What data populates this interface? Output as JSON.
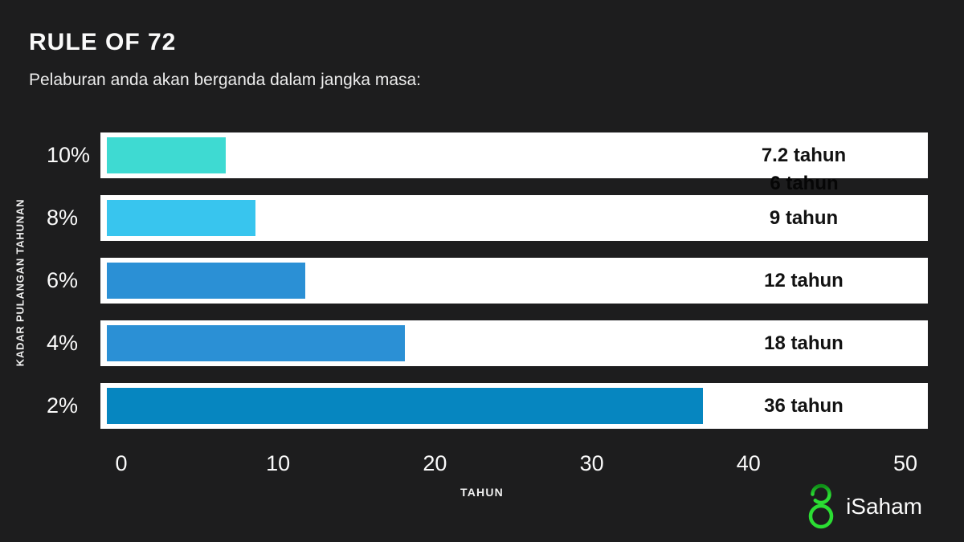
{
  "header": {
    "title": "RULE OF 72",
    "subtitle": "Pelaburan anda akan berganda dalam jangka masa:"
  },
  "chart_data": {
    "type": "bar",
    "orientation": "horizontal",
    "title": "RULE OF 72",
    "categories": [
      "10%",
      "8%",
      "6%",
      "4%",
      "2%"
    ],
    "values": [
      7.2,
      9,
      12,
      18,
      36
    ],
    "value_labels": [
      "7.2 tahun",
      "9 tahun",
      "12 tahun",
      "18 tahun",
      "36 tahun"
    ],
    "stray_label": "6 tahun",
    "bar_colors": [
      "#3edad2",
      "#38c5ee",
      "#2b90d5",
      "#2b90d5",
      "#0686c0"
    ],
    "track_color": "#ffffff",
    "xlabel": "TAHUN",
    "ylabel": "KADAR PULANGAN TAHUNAN",
    "xlim": [
      0,
      50
    ],
    "x_ticks": [
      "0",
      "10",
      "20",
      "30",
      "40",
      "50"
    ],
    "grid": false,
    "legend": false,
    "background_color": "#1d1d1e"
  },
  "footer": {
    "brand": "iSaham",
    "logo_color": "#2bdd33"
  }
}
